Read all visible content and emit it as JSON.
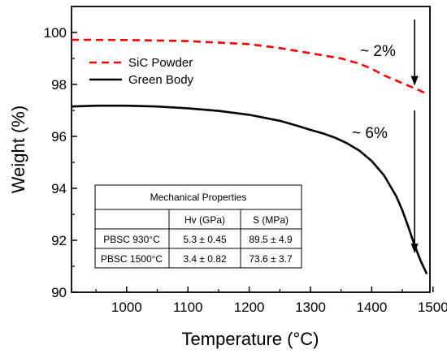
{
  "chart_data": {
    "type": "line",
    "xlabel": "Temperature (°C)",
    "ylabel": "Weight (%)",
    "xlim": [
      910,
      1495
    ],
    "ylim": [
      90,
      101
    ],
    "xticks": [
      1000,
      1100,
      1200,
      1300,
      1400,
      1500
    ],
    "yticks": [
      90,
      92,
      94,
      96,
      98,
      100
    ],
    "grid": false,
    "legend_position": "top-left",
    "series": [
      {
        "name": "SiC Powder",
        "color": "#ff0000",
        "style": "dashed",
        "x": [
          910,
          1000,
          1100,
          1200,
          1250,
          1300,
          1350,
          1380,
          1400,
          1420,
          1440,
          1460,
          1480,
          1490
        ],
        "y": [
          99.72,
          99.71,
          99.67,
          99.55,
          99.4,
          99.2,
          99.0,
          98.8,
          98.6,
          98.35,
          98.15,
          97.95,
          97.75,
          97.62
        ]
      },
      {
        "name": "Green Body",
        "color": "#000000",
        "style": "solid",
        "x": [
          910,
          950,
          1000,
          1050,
          1100,
          1150,
          1200,
          1250,
          1280,
          1300,
          1320,
          1340,
          1360,
          1380,
          1400,
          1420,
          1440,
          1450,
          1460,
          1470,
          1480,
          1490
        ],
        "y": [
          97.15,
          97.18,
          97.18,
          97.15,
          97.08,
          96.98,
          96.83,
          96.6,
          96.4,
          96.25,
          96.12,
          95.95,
          95.73,
          95.45,
          95.05,
          94.5,
          93.7,
          93.15,
          92.5,
          91.8,
          91.2,
          90.7
        ]
      }
    ],
    "annotations": [
      {
        "text": "~ 2%",
        "arrow_x": 1470,
        "arrow_from": 100.5,
        "arrow_to": 97.95
      },
      {
        "text": "~ 6%",
        "arrow_x": 1470,
        "arrow_from": 97.0,
        "arrow_to": 91.5
      }
    ],
    "table": {
      "title": "Mechanical Properties",
      "headers": [
        "",
        "Hv (GPa)",
        "S (MPa)"
      ],
      "rows": [
        [
          "PBSC 930°C",
          "5.3 ± 0.45",
          "89.5 ± 4.9"
        ],
        [
          "PBSC 1500°C",
          "3.4 ± 0.82",
          "73.6 ± 3.7"
        ]
      ]
    }
  }
}
